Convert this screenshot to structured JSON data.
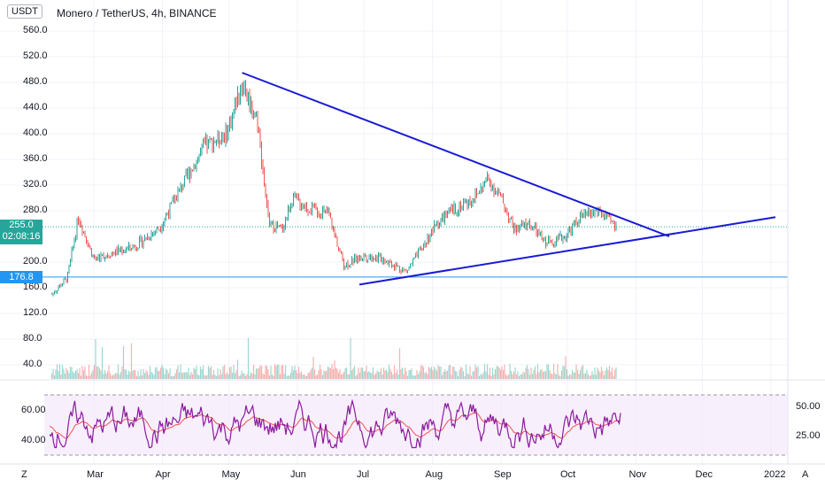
{
  "header": {
    "currency_button": "USDT",
    "title": "Monero / TetherUS, 4h, BINANCE"
  },
  "price_axis": {
    "labels": [
      "560.0",
      "520.0",
      "480.0",
      "440.0",
      "400.0",
      "360.0",
      "320.0",
      "280.0",
      "200.0",
      "160.0",
      "120.0",
      "80.0",
      "40.0"
    ],
    "values": [
      560,
      520,
      480,
      440,
      400,
      360,
      320,
      280,
      200,
      160,
      120,
      80,
      40
    ],
    "current_price": "255.0",
    "countdown": "02:08:16",
    "level_label": "176.8",
    "level_value": 176.8,
    "current_value": 255.0
  },
  "rsi_axis": {
    "left_labels": [
      "60.00",
      "40.00"
    ],
    "right_labels": [
      "50.00",
      "25.00"
    ]
  },
  "time_axis": {
    "labels": [
      "Mar",
      "Apr",
      "May",
      "Jun",
      "Jul",
      "Aug",
      "Sep",
      "Oct",
      "Nov",
      "Dec",
      "2022"
    ]
  },
  "footer": {
    "zoom_button": "Z",
    "auto_button": "A"
  },
  "colors": {
    "up": "#26a69a",
    "down": "#ef5350",
    "trendline": "#1a1ad6",
    "level_line": "#2196f3",
    "rsi_line": "#8b1a9e",
    "signal_line": "#ef5350",
    "rsi_band": "#f3e5fb",
    "current_price_box": "#26a69a",
    "level_box": "#2196f3"
  },
  "chart_data": {
    "type": "candlestick",
    "symbol": "Monero / TetherUS",
    "interval": "4h",
    "exchange": "BINANCE",
    "price_path": [
      [
        "2021-02-10",
        150
      ],
      [
        "2021-02-17",
        175
      ],
      [
        "2021-02-22",
        270
      ],
      [
        "2021-03-01",
        205
      ],
      [
        "2021-03-10",
        215
      ],
      [
        "2021-03-20",
        225
      ],
      [
        "2021-03-31",
        255
      ],
      [
        "2021-04-10",
        320
      ],
      [
        "2021-04-20",
        380
      ],
      [
        "2021-04-30",
        400
      ],
      [
        "2021-05-07",
        480
      ],
      [
        "2021-05-14",
        420
      ],
      [
        "2021-05-19",
        260
      ],
      [
        "2021-05-25",
        250
      ],
      [
        "2021-05-30",
        300
      ],
      [
        "2021-06-05",
        285
      ],
      [
        "2021-06-15",
        275
      ],
      [
        "2021-06-22",
        195
      ],
      [
        "2021-07-01",
        210
      ],
      [
        "2021-07-10",
        205
      ],
      [
        "2021-07-20",
        185
      ],
      [
        "2021-07-27",
        220
      ],
      [
        "2021-08-03",
        260
      ],
      [
        "2021-08-10",
        280
      ],
      [
        "2021-08-20",
        300
      ],
      [
        "2021-08-26",
        330
      ],
      [
        "2021-09-01",
        300
      ],
      [
        "2021-09-07",
        250
      ],
      [
        "2021-09-14",
        260
      ],
      [
        "2021-09-21",
        230
      ],
      [
        "2021-09-30",
        240
      ],
      [
        "2021-10-07",
        270
      ],
      [
        "2021-10-15",
        280
      ],
      [
        "2021-10-23",
        255
      ]
    ],
    "trendlines": [
      {
        "name": "upper",
        "from": [
          "2021-05-07",
          495
        ],
        "to": [
          "2021-11-16",
          240
        ]
      },
      {
        "name": "lower",
        "from": [
          "2021-06-29",
          165
        ],
        "to": [
          "2022-01-03",
          270
        ]
      }
    ],
    "horizontal_levels": [
      176.8
    ],
    "current_price": 255.0,
    "ylim": [
      20,
      590
    ],
    "indicator": {
      "name": "RSI",
      "rsi_range": [
        38,
        60
      ],
      "band": [
        30,
        70
      ]
    }
  }
}
